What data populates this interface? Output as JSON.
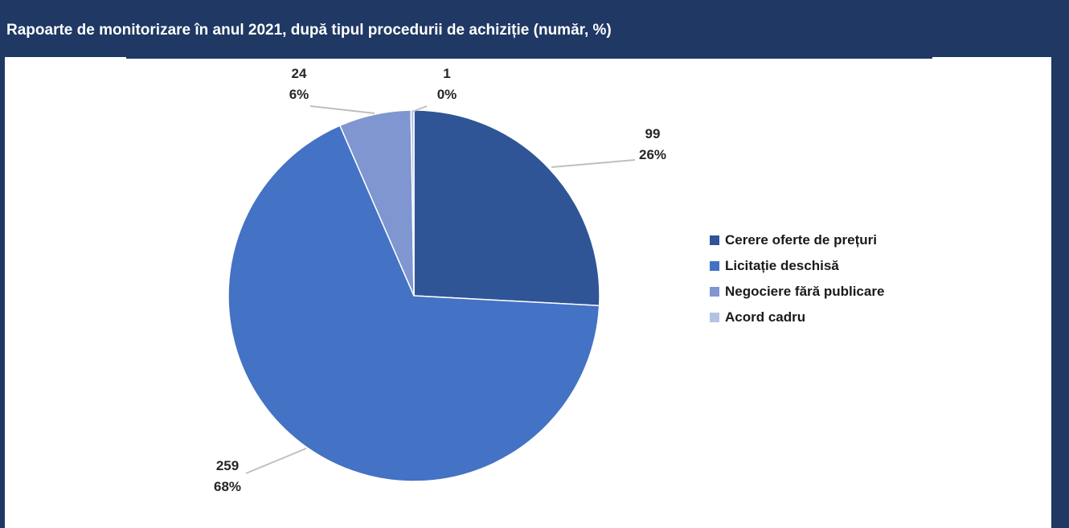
{
  "chart_data": {
    "type": "pie",
    "title": "Rapoarte de monitorizare în anul 2021, după tipul procedurii de achiziție (număr, %)",
    "slices": [
      {
        "label": "Cerere oferte de prețuri",
        "value": 99,
        "percent": "26%",
        "color": "#2f5597"
      },
      {
        "label": "Licitație deschisă",
        "value": 259,
        "percent": "68%",
        "color": "#4472c4"
      },
      {
        "label": "Negociere fără publicare",
        "value": 24,
        "percent": "6%",
        "color": "#7f96d0"
      },
      {
        "label": "Acord cadru",
        "value": 1,
        "percent": "0%",
        "color": "#b4c3e3"
      }
    ],
    "legend_position": "right"
  }
}
